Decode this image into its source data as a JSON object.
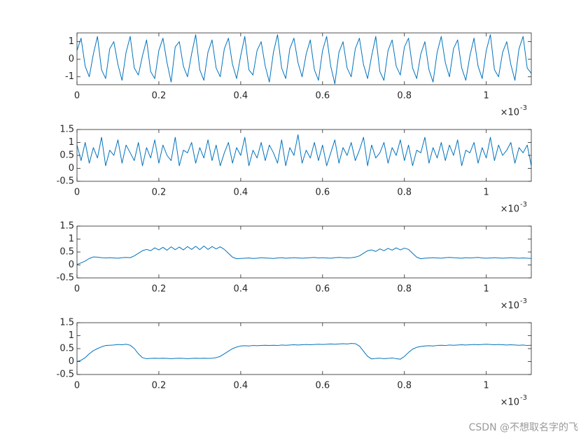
{
  "chart_data": [
    {
      "type": "line",
      "color": "#0072bd",
      "x": [
        0,
        0.01,
        0.02,
        0.03,
        0.04,
        0.05,
        0.06,
        0.07,
        0.08,
        0.09,
        0.1,
        0.11,
        0.12,
        0.13,
        0.14,
        0.15,
        0.16,
        0.17,
        0.18,
        0.19,
        0.2,
        0.21,
        0.22,
        0.23,
        0.24,
        0.25,
        0.26,
        0.27,
        0.28,
        0.29,
        0.3,
        0.31,
        0.32,
        0.33,
        0.34,
        0.35,
        0.36,
        0.37,
        0.38,
        0.39,
        0.4,
        0.41,
        0.42,
        0.43,
        0.44,
        0.45,
        0.46,
        0.47,
        0.48,
        0.49,
        0.5,
        0.51,
        0.52,
        0.53,
        0.54,
        0.55,
        0.56,
        0.57,
        0.58,
        0.59,
        0.6,
        0.61,
        0.62,
        0.63,
        0.64,
        0.65,
        0.66,
        0.67,
        0.68,
        0.69,
        0.7,
        0.71,
        0.72,
        0.73,
        0.74,
        0.75,
        0.76,
        0.77,
        0.78,
        0.79,
        0.8,
        0.81,
        0.82,
        0.83,
        0.84,
        0.85,
        0.86,
        0.87,
        0.88,
        0.89,
        0.9,
        0.91,
        0.92,
        0.93,
        0.94,
        0.95,
        0.96,
        0.97,
        0.98,
        0.99,
        1,
        1.01,
        1.02,
        1.03,
        1.04,
        1.05,
        1.06,
        1.07,
        1.08,
        1.09,
        1.1,
        1.11
      ],
      "values": [
        0.5,
        1.2,
        -0.4,
        -1.0,
        0.3,
        1.3,
        -0.6,
        -1.1,
        0.6,
        1.0,
        -0.3,
        -1.2,
        0.4,
        1.3,
        -0.5,
        -0.9,
        0.2,
        1.1,
        -0.7,
        -1.1,
        0.5,
        1.2,
        -0.2,
        -1.3,
        0.7,
        1.0,
        -0.4,
        -1.0,
        0.3,
        1.4,
        -0.6,
        -1.2,
        0.4,
        1.1,
        -0.5,
        -1.0,
        0.6,
        1.2,
        -0.3,
        -1.1,
        0.2,
        1.3,
        -0.6,
        -0.9,
        0.5,
        1.0,
        -0.4,
        -1.3,
        0.4,
        1.4,
        -0.5,
        -1.1,
        0.6,
        1.2,
        -0.2,
        -1.0,
        0.3,
        1.1,
        -0.6,
        -1.2,
        0.5,
        1.3,
        -0.4,
        -1.4,
        0.4,
        1.0,
        -0.5,
        -1.0,
        0.6,
        1.2,
        -0.3,
        -1.1,
        0.2,
        1.3,
        -0.7,
        -1.2,
        0.5,
        1.1,
        -0.4,
        -0.9,
        0.7,
        1.2,
        -0.5,
        -1.1,
        0.3,
        1.0,
        -0.6,
        -1.3,
        0.4,
        1.3,
        -0.2,
        -1.0,
        0.6,
        1.1,
        -0.5,
        -1.2,
        0.2,
        1.2,
        -0.4,
        -1.1,
        0.5,
        1.4,
        -0.6,
        -1.0,
        0.4,
        1.0,
        -0.3,
        -1.2,
        0.6,
        1.3,
        -0.5,
        -0.8
      ],
      "xlim": [
        0,
        1.11
      ],
      "xticks": [
        0,
        0.2,
        0.4,
        0.6,
        0.8,
        1
      ],
      "ylim": [
        -1.45,
        1.5
      ],
      "yticks": [
        -1,
        0,
        1
      ],
      "x_multiplier": "×10",
      "x_multiplier_exponent": "-3"
    },
    {
      "type": "line",
      "color": "#0072bd",
      "x": [
        0,
        0.01,
        0.02,
        0.03,
        0.04,
        0.05,
        0.06,
        0.07,
        0.08,
        0.09,
        0.1,
        0.11,
        0.12,
        0.13,
        0.14,
        0.15,
        0.16,
        0.17,
        0.18,
        0.19,
        0.2,
        0.21,
        0.22,
        0.23,
        0.24,
        0.25,
        0.26,
        0.27,
        0.28,
        0.29,
        0.3,
        0.31,
        0.32,
        0.33,
        0.34,
        0.35,
        0.36,
        0.37,
        0.38,
        0.39,
        0.4,
        0.41,
        0.42,
        0.43,
        0.44,
        0.45,
        0.46,
        0.47,
        0.48,
        0.49,
        0.5,
        0.51,
        0.52,
        0.53,
        0.54,
        0.55,
        0.56,
        0.57,
        0.58,
        0.59,
        0.6,
        0.61,
        0.62,
        0.63,
        0.64,
        0.65,
        0.66,
        0.67,
        0.68,
        0.69,
        0.7,
        0.71,
        0.72,
        0.73,
        0.74,
        0.75,
        0.76,
        0.77,
        0.78,
        0.79,
        0.8,
        0.81,
        0.82,
        0.83,
        0.84,
        0.85,
        0.86,
        0.87,
        0.88,
        0.89,
        0.9,
        0.91,
        0.92,
        0.93,
        0.94,
        0.95,
        0.96,
        0.97,
        0.98,
        0.99,
        1,
        1.01,
        1.02,
        1.03,
        1.04,
        1.05,
        1.06,
        1.07,
        1.08,
        1.09,
        1.1,
        1.11
      ],
      "values": [
        0.9,
        0.3,
        1.0,
        0.2,
        0.8,
        0.4,
        1.2,
        0.1,
        0.7,
        0.5,
        1.1,
        0.2,
        0.9,
        0.6,
        0.3,
        1.0,
        0.1,
        0.8,
        0.4,
        1.1,
        0.2,
        0.9,
        0.5,
        0.3,
        1.2,
        0.1,
        0.7,
        0.6,
        1.0,
        0.2,
        0.8,
        0.4,
        1.1,
        0.3,
        0.9,
        0.1,
        0.6,
        1.0,
        0.2,
        0.8,
        0.5,
        1.2,
        0.1,
        0.7,
        0.4,
        1.0,
        0.3,
        0.9,
        0.6,
        0.2,
        1.1,
        0.1,
        0.8,
        0.5,
        1.3,
        0.2,
        0.7,
        0.4,
        1.0,
        0.3,
        0.9,
        0.1,
        0.6,
        1.1,
        0.2,
        0.8,
        0.5,
        1.0,
        0.3,
        0.7,
        1.2,
        0.1,
        0.9,
        0.4,
        0.6,
        1.0,
        0.2,
        0.8,
        0.5,
        1.1,
        0.3,
        0.9,
        0.1,
        0.7,
        0.6,
        1.2,
        0.2,
        0.8,
        0.4,
        1.0,
        0.3,
        0.9,
        0.5,
        1.1,
        0.1,
        0.7,
        0.6,
        1.0,
        0.2,
        0.8,
        0.4,
        1.2,
        0.3,
        0.9,
        0.5,
        0.7,
        1.0,
        0.2,
        0.8,
        0.6,
        0.9,
        0.1
      ],
      "xlim": [
        0,
        1.11
      ],
      "xticks": [
        0,
        0.2,
        0.4,
        0.6,
        0.8,
        1
      ],
      "ylim": [
        -0.5,
        1.5
      ],
      "yticks": [
        -0.5,
        0,
        0.5,
        1,
        1.5
      ],
      "x_multiplier": "×10",
      "x_multiplier_exponent": "-3"
    },
    {
      "type": "line",
      "color": "#0072bd",
      "x": [
        0,
        0.01,
        0.02,
        0.03,
        0.04,
        0.05,
        0.06,
        0.07,
        0.08,
        0.09,
        0.1,
        0.11,
        0.12,
        0.13,
        0.14,
        0.15,
        0.16,
        0.17,
        0.18,
        0.19,
        0.2,
        0.21,
        0.22,
        0.23,
        0.24,
        0.25,
        0.26,
        0.27,
        0.28,
        0.29,
        0.3,
        0.31,
        0.32,
        0.33,
        0.34,
        0.35,
        0.36,
        0.37,
        0.38,
        0.39,
        0.4,
        0.41,
        0.42,
        0.43,
        0.44,
        0.45,
        0.46,
        0.47,
        0.48,
        0.49,
        0.5,
        0.51,
        0.52,
        0.53,
        0.54,
        0.55,
        0.56,
        0.57,
        0.58,
        0.59,
        0.6,
        0.61,
        0.62,
        0.63,
        0.64,
        0.65,
        0.66,
        0.67,
        0.68,
        0.69,
        0.7,
        0.71,
        0.72,
        0.73,
        0.74,
        0.75,
        0.76,
        0.77,
        0.78,
        0.79,
        0.8,
        0.81,
        0.82,
        0.83,
        0.84,
        0.85,
        0.86,
        0.87,
        0.88,
        0.89,
        0.9,
        0.91,
        0.92,
        0.93,
        0.94,
        0.95,
        0.96,
        0.97,
        0.98,
        0.99,
        1,
        1.01,
        1.02,
        1.03,
        1.04,
        1.05,
        1.06,
        1.07,
        1.08,
        1.09,
        1.1,
        1.11
      ],
      "values": [
        0.02,
        0.08,
        0.15,
        0.25,
        0.31,
        0.3,
        0.28,
        0.27,
        0.28,
        0.27,
        0.26,
        0.28,
        0.29,
        0.28,
        0.35,
        0.45,
        0.55,
        0.6,
        0.55,
        0.66,
        0.58,
        0.68,
        0.57,
        0.7,
        0.59,
        0.69,
        0.58,
        0.71,
        0.6,
        0.72,
        0.59,
        0.73,
        0.6,
        0.71,
        0.62,
        0.7,
        0.6,
        0.45,
        0.3,
        0.24,
        0.25,
        0.26,
        0.27,
        0.25,
        0.26,
        0.28,
        0.27,
        0.26,
        0.25,
        0.27,
        0.28,
        0.26,
        0.27,
        0.28,
        0.27,
        0.26,
        0.27,
        0.28,
        0.29,
        0.27,
        0.28,
        0.27,
        0.26,
        0.28,
        0.29,
        0.28,
        0.27,
        0.28,
        0.3,
        0.35,
        0.45,
        0.55,
        0.58,
        0.52,
        0.62,
        0.55,
        0.64,
        0.57,
        0.66,
        0.58,
        0.65,
        0.6,
        0.45,
        0.3,
        0.24,
        0.26,
        0.27,
        0.28,
        0.27,
        0.26,
        0.28,
        0.29,
        0.28,
        0.27,
        0.26,
        0.28,
        0.27,
        0.28,
        0.29,
        0.27,
        0.26,
        0.27,
        0.28,
        0.27,
        0.26,
        0.27,
        0.28,
        0.27,
        0.26,
        0.27,
        0.26,
        0.25
      ],
      "xlim": [
        0,
        1.11
      ],
      "xticks": [
        0,
        0.2,
        0.4,
        0.6,
        0.8,
        1
      ],
      "ylim": [
        -0.5,
        1.5
      ],
      "yticks": [
        -0.5,
        0,
        0.5,
        1,
        1.5
      ],
      "x_multiplier": "×10",
      "x_multiplier_exponent": "-3"
    },
    {
      "type": "line",
      "color": "#0072bd",
      "x": [
        0,
        0.01,
        0.02,
        0.03,
        0.04,
        0.05,
        0.06,
        0.07,
        0.08,
        0.09,
        0.1,
        0.11,
        0.12,
        0.13,
        0.14,
        0.15,
        0.16,
        0.17,
        0.18,
        0.19,
        0.2,
        0.21,
        0.22,
        0.23,
        0.24,
        0.25,
        0.26,
        0.27,
        0.28,
        0.29,
        0.3,
        0.31,
        0.32,
        0.33,
        0.34,
        0.35,
        0.36,
        0.37,
        0.38,
        0.39,
        0.4,
        0.41,
        0.42,
        0.43,
        0.44,
        0.45,
        0.46,
        0.47,
        0.48,
        0.49,
        0.5,
        0.51,
        0.52,
        0.53,
        0.54,
        0.55,
        0.56,
        0.57,
        0.58,
        0.59,
        0.6,
        0.61,
        0.62,
        0.63,
        0.64,
        0.65,
        0.66,
        0.67,
        0.68,
        0.69,
        0.7,
        0.71,
        0.72,
        0.73,
        0.74,
        0.75,
        0.76,
        0.77,
        0.78,
        0.79,
        0.8,
        0.81,
        0.82,
        0.83,
        0.84,
        0.85,
        0.86,
        0.87,
        0.88,
        0.89,
        0.9,
        0.91,
        0.92,
        0.93,
        0.94,
        0.95,
        0.96,
        0.97,
        0.98,
        0.99,
        1,
        1.01,
        1.02,
        1.03,
        1.04,
        1.05,
        1.06,
        1.07,
        1.08,
        1.09,
        1.1,
        1.11
      ],
      "values": [
        0.0,
        0.05,
        0.15,
        0.3,
        0.42,
        0.5,
        0.57,
        0.62,
        0.63,
        0.64,
        0.66,
        0.65,
        0.67,
        0.63,
        0.5,
        0.3,
        0.15,
        0.11,
        0.12,
        0.13,
        0.12,
        0.13,
        0.12,
        0.11,
        0.12,
        0.13,
        0.12,
        0.11,
        0.12,
        0.13,
        0.12,
        0.13,
        0.12,
        0.13,
        0.15,
        0.2,
        0.3,
        0.4,
        0.5,
        0.56,
        0.6,
        0.61,
        0.6,
        0.62,
        0.61,
        0.62,
        0.63,
        0.62,
        0.63,
        0.62,
        0.64,
        0.63,
        0.64,
        0.65,
        0.64,
        0.65,
        0.66,
        0.65,
        0.66,
        0.67,
        0.66,
        0.67,
        0.68,
        0.67,
        0.68,
        0.69,
        0.68,
        0.7,
        0.69,
        0.6,
        0.4,
        0.2,
        0.1,
        0.12,
        0.13,
        0.11,
        0.12,
        0.14,
        0.11,
        0.09,
        0.2,
        0.35,
        0.48,
        0.55,
        0.58,
        0.6,
        0.61,
        0.6,
        0.62,
        0.63,
        0.62,
        0.64,
        0.63,
        0.64,
        0.65,
        0.64,
        0.65,
        0.66,
        0.65,
        0.66,
        0.67,
        0.66,
        0.65,
        0.66,
        0.65,
        0.64,
        0.65,
        0.64,
        0.63,
        0.64,
        0.62,
        0.63
      ],
      "xlim": [
        0,
        1.11
      ],
      "xticks": [
        0,
        0.2,
        0.4,
        0.6,
        0.8,
        1
      ],
      "ylim": [
        -0.5,
        1.5
      ],
      "yticks": [
        -0.5,
        0,
        0.5,
        1,
        1.5
      ],
      "x_multiplier": "×10",
      "x_multiplier_exponent": "-3"
    }
  ],
  "watermark": "CSDN @不想取名字的飞"
}
